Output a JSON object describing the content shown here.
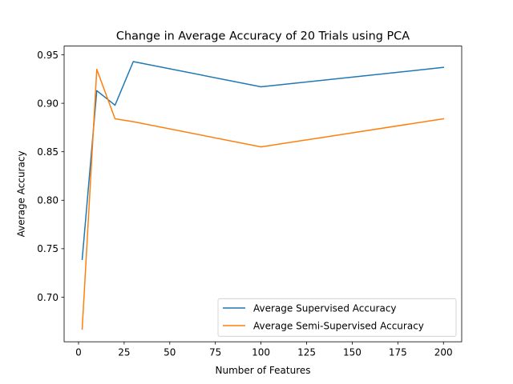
{
  "chart_data": {
    "type": "line",
    "title": "Change in Average Accuracy of 20 Trials using PCA",
    "xlabel": "Number of Features",
    "ylabel": "Average Accuracy",
    "xlim": [
      -7.9,
      210
    ],
    "ylim": [
      0.654,
      0.959
    ],
    "xticks": [
      0,
      25,
      50,
      75,
      100,
      125,
      150,
      175,
      200
    ],
    "xtick_labels": [
      "0",
      "25",
      "50",
      "75",
      "100",
      "125",
      "150",
      "175",
      "200"
    ],
    "yticks": [
      0.7,
      0.75,
      0.8,
      0.85,
      0.9,
      0.95
    ],
    "ytick_labels": [
      "0.70",
      "0.75",
      "0.80",
      "0.85",
      "0.90",
      "0.95"
    ],
    "grid": false,
    "legend_position": "lower-right",
    "series": [
      {
        "name": "Average Supervised Accuracy",
        "color": "#1f77b4",
        "x": [
          2,
          10,
          20,
          30,
          100,
          200
        ],
        "y": [
          0.739,
          0.913,
          0.898,
          0.943,
          0.917,
          0.937
        ]
      },
      {
        "name": "Average Semi-Supervised Accuracy",
        "color": "#ff7f0e",
        "x": [
          2,
          10,
          20,
          30,
          100,
          200
        ],
        "y": [
          0.667,
          0.935,
          0.884,
          0.881,
          0.855,
          0.884
        ]
      }
    ]
  }
}
